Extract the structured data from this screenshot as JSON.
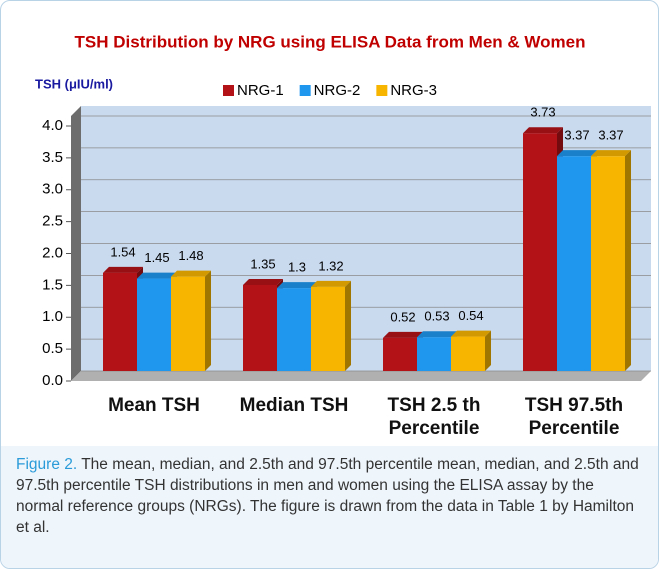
{
  "chart_data": {
    "type": "bar",
    "title": "TSH Distribution by NRG using ELISA  Data from Men & Women",
    "y_label": "TSH (μIU/ml)",
    "categories": [
      "Mean TSH",
      "Median TSH",
      "TSH 2.5 th Percentile",
      "TSH 97.5th Percentile"
    ],
    "series": [
      {
        "name": "NRG-1",
        "color": "#b31217",
        "values": [
          1.54,
          1.35,
          0.52,
          3.73
        ]
      },
      {
        "name": "NRG-2",
        "color": "#1f97ee",
        "values": [
          1.45,
          1.3,
          0.53,
          3.37
        ]
      },
      {
        "name": "NRG-3",
        "color": "#f7b500",
        "values": [
          1.48,
          1.32,
          0.54,
          3.37
        ]
      }
    ],
    "ylim": [
      0,
      4
    ],
    "yticks": [
      {
        "value": 0,
        "label": "0.0"
      },
      {
        "value": 0.5,
        "label": "0.5"
      },
      {
        "value": 1,
        "label": "1.0"
      },
      {
        "value": 1.5,
        "label": "1.5"
      },
      {
        "value": 2,
        "label": "2.0"
      },
      {
        "value": 2.5,
        "label": "2.5"
      },
      {
        "value": 3,
        "label": "3.0"
      },
      {
        "value": 3.5,
        "label": "3.5"
      },
      {
        "value": 4,
        "label": "4.0"
      }
    ],
    "grid": true,
    "legend": "top"
  },
  "caption": {
    "label": "Figure 2.",
    "text": "The mean, median, and 2.5th and 97.5th percentile mean, median, and 2.5th and 97.5th percentile TSH distributions in men and women using the ELISA assay by the normal reference groups (NRGs). The figure is drawn from the data in Table 1 by Hamilton et al."
  }
}
